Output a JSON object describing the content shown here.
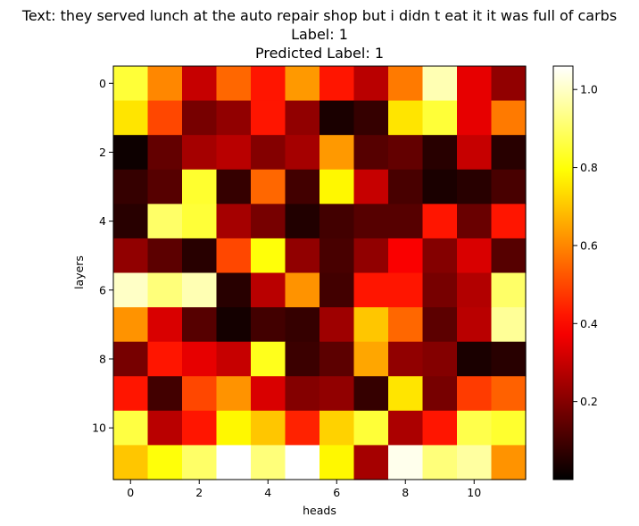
{
  "chart_data": {
    "type": "heatmap",
    "title_lines": [
      "Text: they served lunch at the auto repair shop but i didn t eat it it was full of carbs",
      "Label: 1",
      "Predicted Label: 1"
    ],
    "xlabel": "heads",
    "ylabel": "layers",
    "colormap": "hot",
    "vmin": 0.0,
    "vmax": 1.06,
    "x_ticks": [
      0,
      2,
      4,
      6,
      8,
      10
    ],
    "y_ticks": [
      0,
      2,
      4,
      6,
      8,
      10
    ],
    "colorbar_ticks": [
      0.2,
      0.4,
      0.6,
      0.8,
      1.0
    ],
    "values": [
      [
        0.85,
        0.6,
        0.3,
        0.55,
        0.42,
        0.63,
        0.42,
        0.28,
        0.58,
        0.98,
        0.35,
        0.22
      ],
      [
        0.75,
        0.5,
        0.18,
        0.22,
        0.42,
        0.22,
        0.04,
        0.08,
        0.75,
        0.85,
        0.35,
        0.58
      ],
      [
        0.02,
        0.15,
        0.25,
        0.28,
        0.2,
        0.25,
        0.63,
        0.13,
        0.15,
        0.06,
        0.3,
        0.06
      ],
      [
        0.08,
        0.13,
        0.84,
        0.08,
        0.55,
        0.1,
        0.78,
        0.3,
        0.11,
        0.04,
        0.06,
        0.11
      ],
      [
        0.06,
        0.9,
        0.85,
        0.25,
        0.18,
        0.05,
        0.1,
        0.13,
        0.13,
        0.42,
        0.16,
        0.42
      ],
      [
        0.22,
        0.14,
        0.06,
        0.5,
        0.8,
        0.22,
        0.11,
        0.22,
        0.38,
        0.2,
        0.33,
        0.13
      ],
      [
        1.0,
        0.92,
        0.98,
        0.06,
        0.28,
        0.62,
        0.1,
        0.42,
        0.42,
        0.18,
        0.27,
        0.9
      ],
      [
        0.62,
        0.33,
        0.13,
        0.03,
        0.1,
        0.08,
        0.24,
        0.7,
        0.55,
        0.14,
        0.28,
        0.95
      ],
      [
        0.18,
        0.42,
        0.35,
        0.3,
        0.82,
        0.09,
        0.14,
        0.65,
        0.22,
        0.2,
        0.04,
        0.06
      ],
      [
        0.42,
        0.1,
        0.5,
        0.62,
        0.33,
        0.2,
        0.22,
        0.08,
        0.75,
        0.18,
        0.48,
        0.54
      ],
      [
        0.86,
        0.28,
        0.42,
        0.78,
        0.7,
        0.44,
        0.72,
        0.85,
        0.26,
        0.42,
        0.87,
        0.84
      ],
      [
        0.7,
        0.8,
        0.9,
        1.06,
        0.92,
        1.06,
        0.78,
        0.25,
        1.04,
        0.92,
        0.96,
        0.62
      ]
    ]
  }
}
